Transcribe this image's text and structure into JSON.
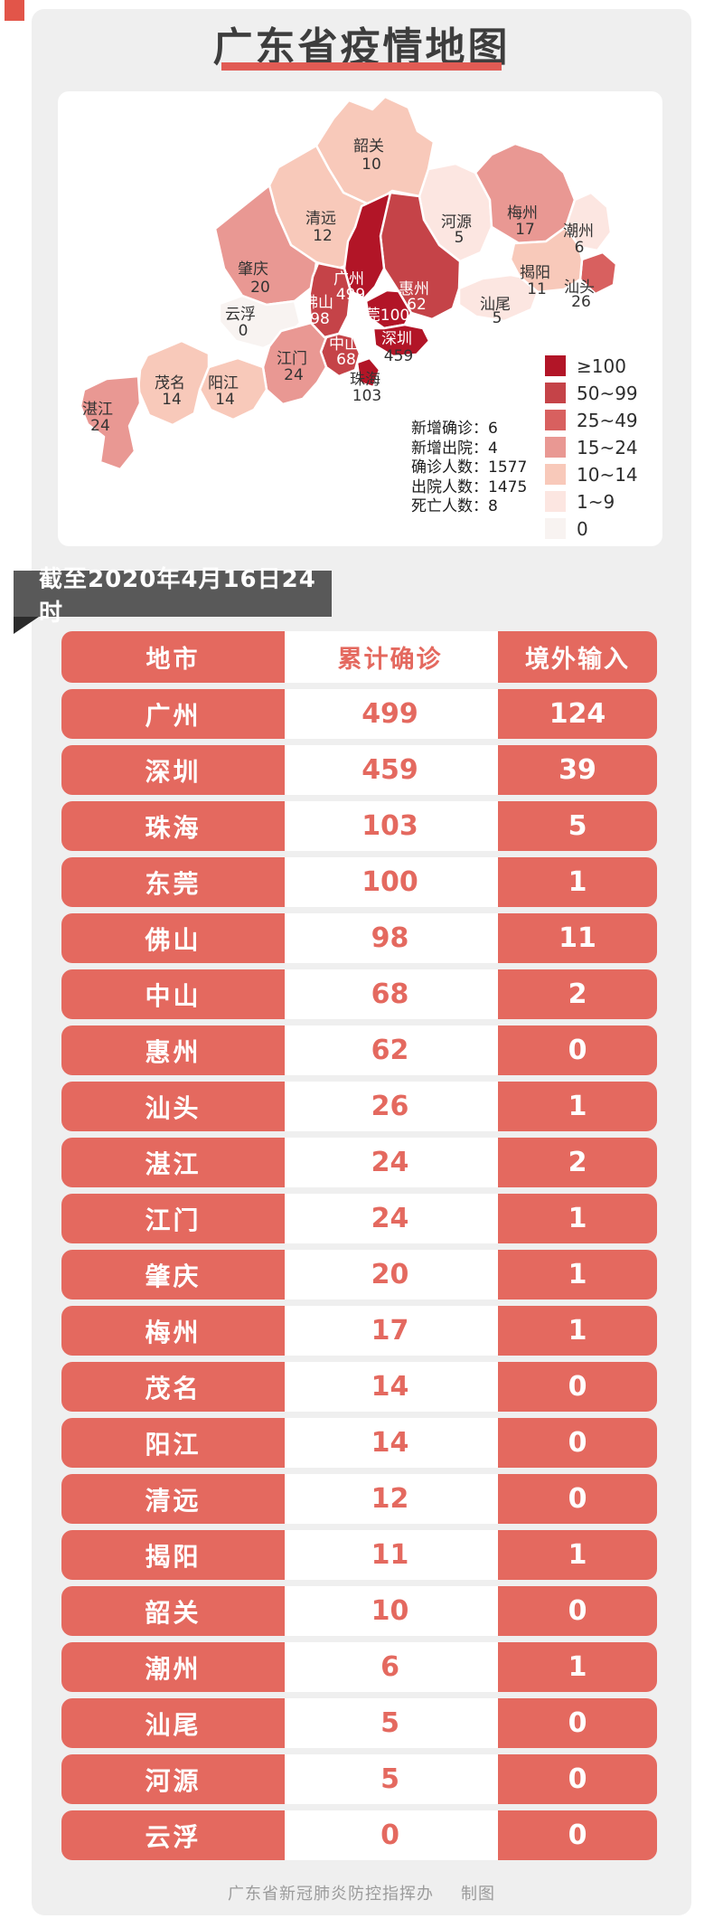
{
  "page": {
    "title": "广东省疫情地图",
    "footer_org": "广东省新冠肺炎防控指挥办",
    "footer_credit": "制图",
    "accent_color": "#e4695f",
    "underline_color": "#e15b54",
    "banner_bg": "#595959",
    "card_bg": "#efefef"
  },
  "banner": {
    "text": "截至2020年4月16日24时"
  },
  "map": {
    "legend": [
      {
        "key": "gte100",
        "label": "≥100",
        "color": "#b21527"
      },
      {
        "key": "r50_99",
        "label": "50~99",
        "color": "#c54348"
      },
      {
        "key": "r25_49",
        "label": "25~49",
        "color": "#d8605f"
      },
      {
        "key": "r15_24",
        "label": "15~24",
        "color": "#e99893"
      },
      {
        "key": "r10_14",
        "label": "10~14",
        "color": "#f8c9ba"
      },
      {
        "key": "r1_9",
        "label": "1~9",
        "color": "#fce6e1"
      },
      {
        "key": "r0",
        "label": "0",
        "color": "#f8f3f1"
      }
    ],
    "stats": [
      {
        "label": "新增确诊",
        "value": "6"
      },
      {
        "label": "新增出院",
        "value": "4"
      },
      {
        "label": "确诊人数",
        "value": "1577"
      },
      {
        "label": "出院人数",
        "value": "1475"
      },
      {
        "label": "死亡人数",
        "value": "8"
      }
    ],
    "regions": [
      {
        "name": "韶关",
        "value": "10",
        "bucket": "r10_14",
        "name_color": "#333333",
        "value_color": "#333333"
      },
      {
        "name": "清远",
        "value": "12",
        "bucket": "r10_14",
        "name_color": "#333333",
        "value_color": "#333333"
      },
      {
        "name": "肇庆",
        "value": "20",
        "bucket": "r15_24",
        "name_color": "#333333",
        "value_color": "#333333"
      },
      {
        "name": "云浮",
        "value": "0",
        "bucket": "r0",
        "name_color": "#333333",
        "value_color": "#333333"
      },
      {
        "name": "河源",
        "value": "5",
        "bucket": "r1_9",
        "name_color": "#333333",
        "value_color": "#333333"
      },
      {
        "name": "梅州",
        "value": "17",
        "bucket": "r15_24",
        "name_color": "#333333",
        "value_color": "#333333"
      },
      {
        "name": "潮州",
        "value": "6",
        "bucket": "r1_9",
        "name_color": "#333333",
        "value_color": "#333333"
      },
      {
        "name": "汕头",
        "value": "26",
        "bucket": "r25_49",
        "name_color": "#333333",
        "value_color": "#333333"
      },
      {
        "name": "揭阳",
        "value": "11",
        "bucket": "r10_14",
        "name_color": "#333333",
        "value_color": "#333333"
      },
      {
        "name": "汕尾",
        "value": "5",
        "bucket": "r1_9",
        "name_color": "#333333",
        "value_color": "#333333"
      },
      {
        "name": "惠州",
        "value": "62",
        "bucket": "r50_99",
        "name_color": "#ffffff",
        "value_color": "#ffffff"
      },
      {
        "name": "广州",
        "value": "499",
        "bucket": "gte100",
        "name_color": "#ffffff",
        "value_color": "#ffffff"
      },
      {
        "name": "佛山",
        "value": "98",
        "bucket": "r50_99",
        "name_color": "#ffffff",
        "value_color": "#ffffff"
      },
      {
        "name": "东莞",
        "value": "100",
        "bucket": "gte100",
        "name_color": "#ffffff",
        "value_color": "#ffffff"
      },
      {
        "name": "深圳",
        "value": "459",
        "bucket": "gte100",
        "name_color": "#ffffff",
        "value_color": "#333333"
      },
      {
        "name": "中山",
        "value": "68",
        "bucket": "r50_99",
        "name_color": "#ffffff",
        "value_color": "#ffffff"
      },
      {
        "name": "珠海",
        "value": "103",
        "bucket": "gte100",
        "name_color": "#333333",
        "value_color": "#333333"
      },
      {
        "name": "江门",
        "value": "24",
        "bucket": "r15_24",
        "name_color": "#333333",
        "value_color": "#333333"
      },
      {
        "name": "阳江",
        "value": "14",
        "bucket": "r10_14",
        "name_color": "#333333",
        "value_color": "#333333"
      },
      {
        "name": "茂名",
        "value": "14",
        "bucket": "r10_14",
        "name_color": "#333333",
        "value_color": "#333333"
      },
      {
        "name": "湛江",
        "value": "24",
        "bucket": "r15_24",
        "name_color": "#333333",
        "value_color": "#333333"
      }
    ]
  },
  "table": {
    "headers": [
      "地市",
      "累计确诊",
      "境外输入"
    ],
    "rows": [
      [
        "广州",
        "499",
        "124"
      ],
      [
        "深圳",
        "459",
        "39"
      ],
      [
        "珠海",
        "103",
        "5"
      ],
      [
        "东莞",
        "100",
        "1"
      ],
      [
        "佛山",
        "98",
        "11"
      ],
      [
        "中山",
        "68",
        "2"
      ],
      [
        "惠州",
        "62",
        "0"
      ],
      [
        "汕头",
        "26",
        "1"
      ],
      [
        "湛江",
        "24",
        "2"
      ],
      [
        "江门",
        "24",
        "1"
      ],
      [
        "肇庆",
        "20",
        "1"
      ],
      [
        "梅州",
        "17",
        "1"
      ],
      [
        "茂名",
        "14",
        "0"
      ],
      [
        "阳江",
        "14",
        "0"
      ],
      [
        "清远",
        "12",
        "0"
      ],
      [
        "揭阳",
        "11",
        "1"
      ],
      [
        "韶关",
        "10",
        "0"
      ],
      [
        "潮州",
        "6",
        "1"
      ],
      [
        "汕尾",
        "5",
        "0"
      ],
      [
        "河源",
        "5",
        "0"
      ],
      [
        "云浮",
        "0",
        "0"
      ]
    ]
  }
}
